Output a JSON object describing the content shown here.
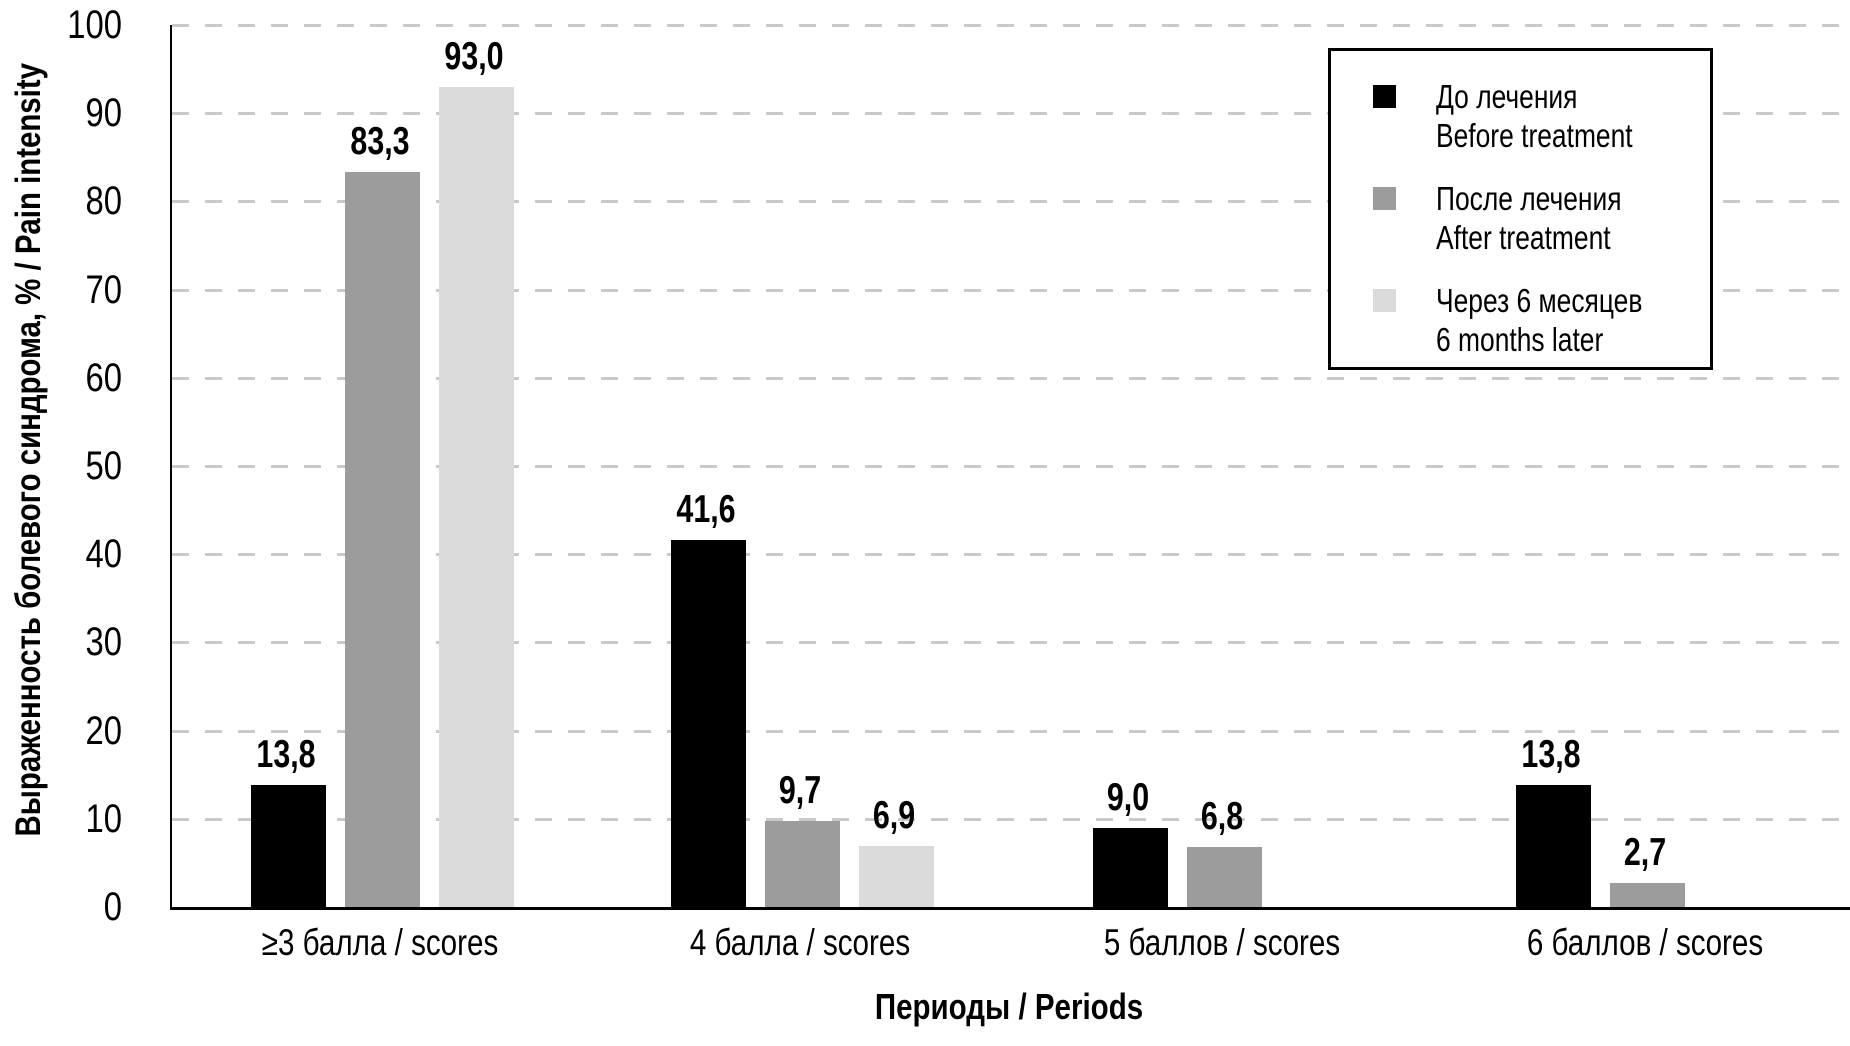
{
  "chart_data": {
    "type": "bar",
    "title": "",
    "xlabel": "Периоды / Periods",
    "ylabel": "Выраженность болевого синдрома, % / Pain intensity",
    "ylim": [
      0,
      100
    ],
    "yticks": [
      0,
      10,
      20,
      30,
      40,
      50,
      60,
      70,
      80,
      90,
      100
    ],
    "grid": "horizontal-dashed",
    "gridline_color": "#c9c9c9",
    "legend_position": "top-right",
    "categories": [
      "≥3 балла / scores",
      "4 балла / scores",
      "5 баллов / scores",
      "6 баллов / scores"
    ],
    "series": [
      {
        "label_ru": "До лечения",
        "label_en": "Before treatment",
        "color": "#000000",
        "values": [
          13.8,
          41.6,
          9.0,
          13.8
        ],
        "value_labels": [
          "13,8",
          "41,6",
          "9,0",
          "13,8"
        ]
      },
      {
        "label_ru": "После лечения",
        "label_en": "After treatment",
        "color": "#9c9c9c",
        "values": [
          83.3,
          9.7,
          6.8,
          2.7
        ],
        "value_labels": [
          "83,3",
          "9,7",
          "6,8",
          "2,7"
        ]
      },
      {
        "label_ru": "Через 6 месяцев",
        "label_en": "6 months later",
        "color": "#dbdbdb",
        "values": [
          93.0,
          6.9,
          0,
          0
        ],
        "value_labels": [
          "93,0",
          "6,9",
          "",
          ""
        ]
      }
    ]
  }
}
